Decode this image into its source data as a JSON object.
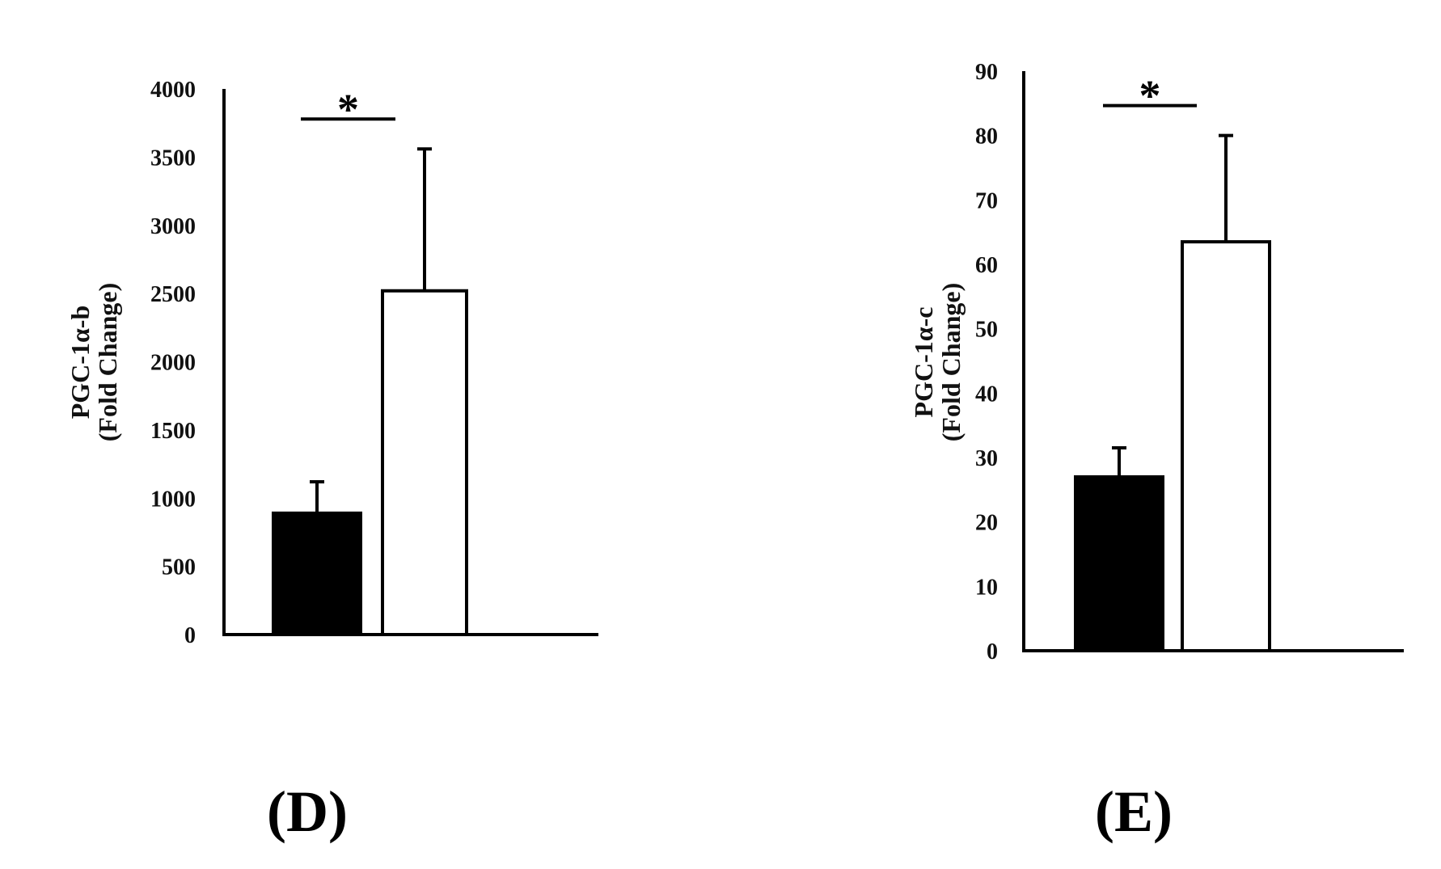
{
  "chart_data": [
    {
      "type": "bar",
      "panel_label": "(D)",
      "ylabel_line1": "PGC-1α-b",
      "ylabel_line2": "(Fold Change)",
      "ylim": [
        0,
        4000
      ],
      "yticks": [
        "0",
        "500",
        "1000",
        "1500",
        "2000",
        "2500",
        "3000",
        "3500",
        "4000"
      ],
      "categories": [
        "",
        ""
      ],
      "values": [
        890,
        2520
      ],
      "errors": [
        230,
        1040
      ],
      "fills": [
        "#000000",
        "#ffffff"
      ],
      "significance": "*",
      "grid": false
    },
    {
      "type": "bar",
      "panel_label": "(E)",
      "ylabel_line1": "PGC-1α-c",
      "ylabel_line2": "(Fold Change)",
      "ylim": [
        0,
        90
      ],
      "yticks": [
        "0",
        "10",
        "20",
        "30",
        "40",
        "50",
        "60",
        "70",
        "80",
        "90"
      ],
      "categories": [
        "",
        ""
      ],
      "values": [
        27,
        63.5
      ],
      "errors": [
        4.5,
        16.5
      ],
      "fills": [
        "#000000",
        "#ffffff"
      ],
      "significance": "*",
      "grid": false
    }
  ]
}
